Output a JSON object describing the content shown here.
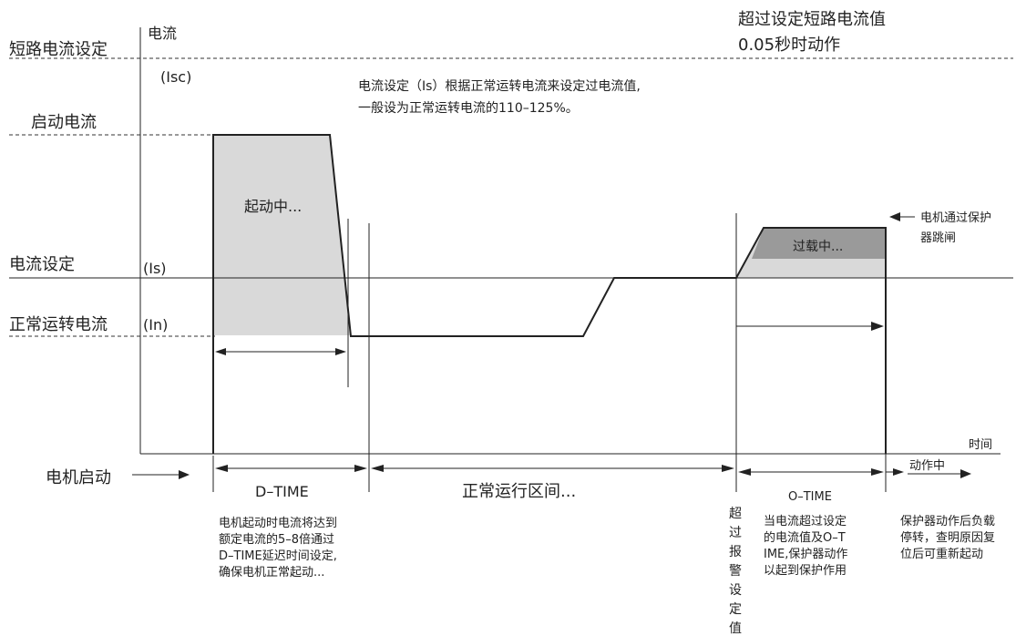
{
  "labels": {
    "short_circuit_setting": "短路电流设定",
    "current_axis": "电流",
    "isc": "(Isc)",
    "start_current": "启动电流",
    "current_setting": "电流设定",
    "is": "(Is)",
    "normal_current": "正常运转电流",
    "in": "(In)",
    "time_axis": "时间",
    "motor_start": "电机启动",
    "starting": "起动中...",
    "overload": "过载中...",
    "trip": "电机通过保护器跳闸",
    "d_time": "D–TIME",
    "normal_interval": "正常运行区间...",
    "o_time": "O–TIME",
    "acting": "动作中"
  },
  "notes": {
    "short_circuit_action": [
      "超过设定短路电流值",
      "0.05秒时动作"
    ],
    "current_setting_note": [
      "电流设定（Is）根据正常运转电流来设定过电流值,",
      "一般设为正常运转电流的110–125%。"
    ],
    "dtime_note": [
      "电机起动时电流将达到",
      "额定电流的5–8倍通过",
      "D–TIME延迟时间设定,",
      "确保电机正常起动..."
    ],
    "alarm_value": [
      "超",
      "过",
      "报",
      "警",
      "设",
      "定",
      "值"
    ],
    "otime_note": [
      "当电流超过设定",
      "的电流值及O–T",
      "IME,保护器动作",
      "以起到保护作用"
    ],
    "after_action_note": [
      "保护器动作后负载",
      "停转，查明原因复",
      "位后可重新起动"
    ]
  },
  "colors": {
    "line": "#222222",
    "light_fill": "#d9d9d9",
    "dark_fill": "#9a9a9a"
  }
}
